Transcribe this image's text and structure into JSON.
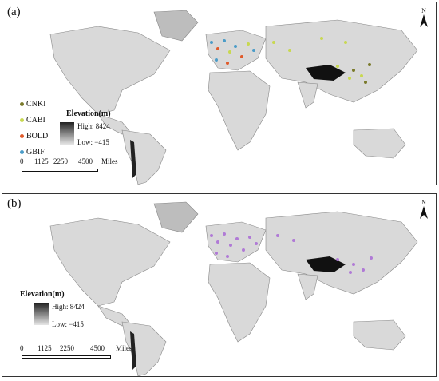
{
  "panels": [
    {
      "label": "(a)",
      "north": "N",
      "legend": [
        {
          "name": "CNKI",
          "color": "#7a7a2a"
        },
        {
          "name": "CABI",
          "color": "#c8d850"
        },
        {
          "name": "BOLD",
          "color": "#e05a2a"
        },
        {
          "name": "GBIF",
          "color": "#4a9cc8"
        }
      ],
      "elevation": {
        "title": "Elevation(m)",
        "high": "High: 8424",
        "low": "Low: −415"
      },
      "scale": {
        "ticks": [
          "0",
          "1125",
          "2250",
          "4500"
        ],
        "unit": "Miles"
      }
    },
    {
      "label": "(b)",
      "north": "N",
      "legend": [],
      "point_color": "#b07ad6",
      "elevation": {
        "title": "Elevation(m)",
        "high": "High: 8424",
        "low": "Low: −415"
      },
      "scale": {
        "ticks": [
          "0",
          "1125",
          "2250",
          "4500"
        ],
        "unit": "Miles"
      }
    }
  ]
}
